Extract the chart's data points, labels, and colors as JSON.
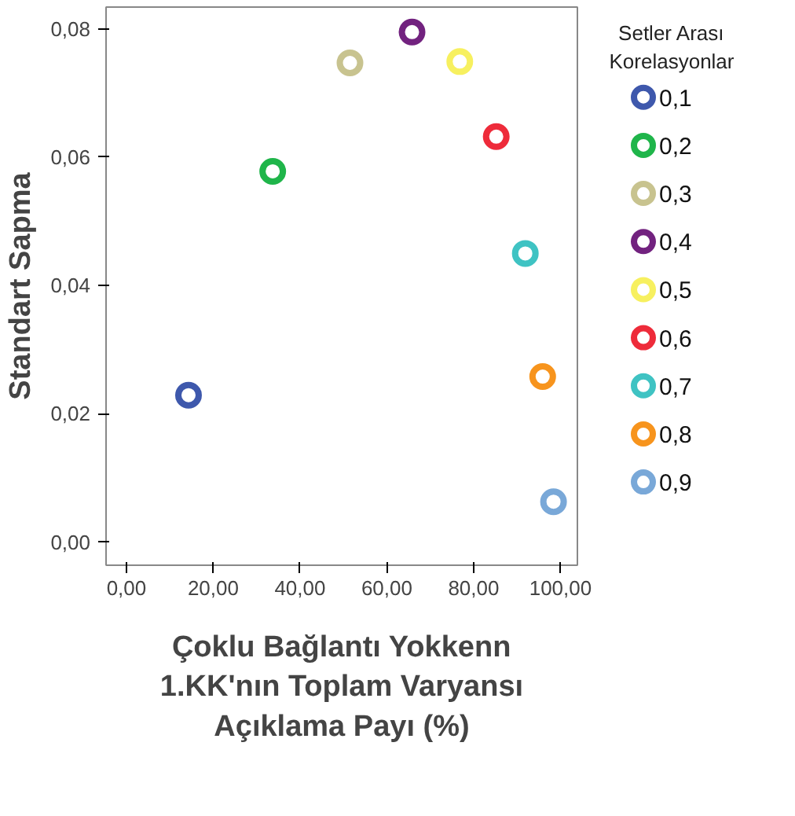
{
  "chart_data": {
    "type": "scatter",
    "xlabel": "Çoklu Bağlantı Yokkenn\n1.KK'nın Toplam Varyansı\nAçıklama Payı (%)",
    "ylabel": "Standart Sapma",
    "legend_title": "Setler Arası\nKorelasyonlar",
    "legend": "right",
    "marker": "circle",
    "grid": false,
    "xlim": [
      -4.7,
      103.9
    ],
    "ylim": [
      -0.0036,
      0.0834
    ],
    "xticks": [
      {
        "value": 0,
        "label": "0,00"
      },
      {
        "value": 20,
        "label": "20,00"
      },
      {
        "value": 40,
        "label": "40,00"
      },
      {
        "value": 60,
        "label": "60,00"
      },
      {
        "value": 80,
        "label": "80,00"
      },
      {
        "value": 100,
        "label": "100,00"
      }
    ],
    "yticks": [
      {
        "value": 0,
        "label": "0,00"
      },
      {
        "value": 0.02,
        "label": "0,02"
      },
      {
        "value": 0.04,
        "label": "0,04"
      },
      {
        "value": 0.06,
        "label": "0,06"
      },
      {
        "value": 0.08,
        "label": "0,08"
      }
    ],
    "series": [
      {
        "name": "0,1",
        "color": "#3e58ac",
        "x": [
          14.3
        ],
        "values": [
          0.0229
        ]
      },
      {
        "name": "0,2",
        "color": "#1fb54a",
        "x": [
          33.7
        ],
        "values": [
          0.0578
        ]
      },
      {
        "name": "0,3",
        "color": "#c8c38f",
        "x": [
          51.5
        ],
        "values": [
          0.0747
        ]
      },
      {
        "name": "0,4",
        "color": "#72227f",
        "x": [
          65.8
        ],
        "values": [
          0.0795
        ]
      },
      {
        "name": "0,5",
        "color": "#f7f05f",
        "x": [
          76.8
        ],
        "values": [
          0.0749
        ]
      },
      {
        "name": "0,6",
        "color": "#ee2b3a",
        "x": [
          85.2
        ],
        "values": [
          0.0632
        ]
      },
      {
        "name": "0,7",
        "color": "#3fc3c3",
        "x": [
          91.9
        ],
        "values": [
          0.045
        ]
      },
      {
        "name": "0,8",
        "color": "#f7941d",
        "x": [
          95.9
        ],
        "values": [
          0.0258
        ]
      },
      {
        "name": "0,9",
        "color": "#79a8d8",
        "x": [
          98.4
        ],
        "values": [
          0.0063
        ]
      }
    ]
  }
}
